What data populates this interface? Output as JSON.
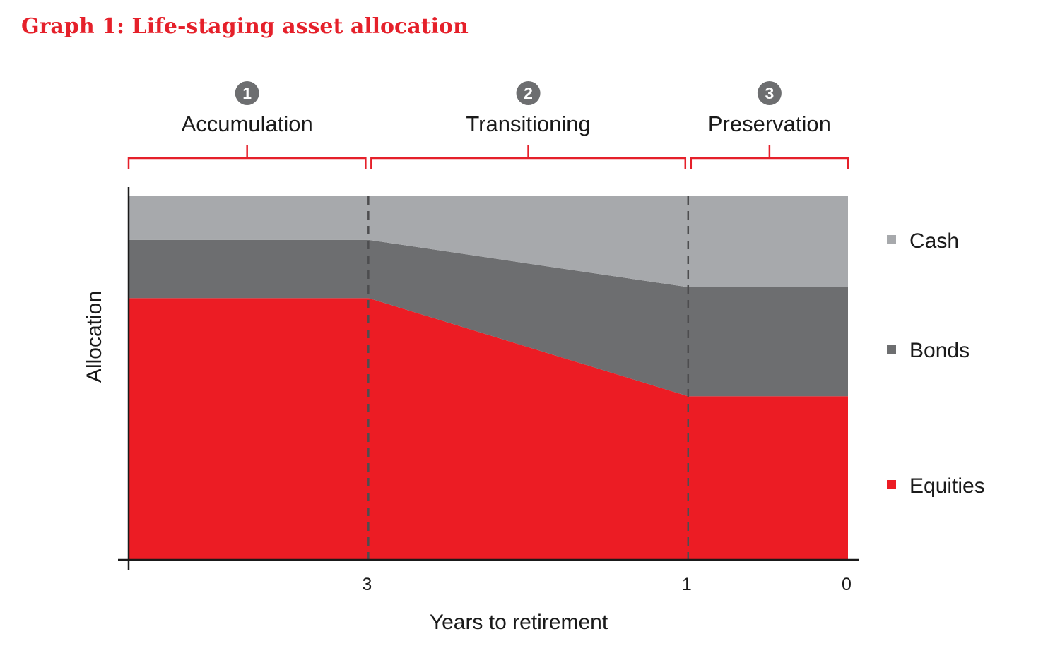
{
  "title": "Graph 1: Life-staging asset allocation",
  "chart_data": {
    "type": "area",
    "stacked": true,
    "xlabel": "Years to retirement",
    "ylabel": "Allocation",
    "x_ticks": [
      "3",
      "1",
      "0"
    ],
    "x": [
      4.5,
      3,
      1,
      0
    ],
    "series": [
      {
        "name": "Equities",
        "color": "#ec1c24",
        "values": [
          72,
          72,
          45,
          45
        ]
      },
      {
        "name": "Bonds",
        "color": "#6d6e70",
        "values": [
          16,
          16,
          30,
          30
        ]
      },
      {
        "name": "Cash",
        "color": "#a7a9ac",
        "values": [
          12,
          12,
          25,
          25
        ]
      }
    ],
    "legend_position": "right",
    "phases": [
      {
        "number": "1",
        "label": "Accumulation"
      },
      {
        "number": "2",
        "label": "Transitioning"
      },
      {
        "number": "3",
        "label": "Preservation"
      }
    ],
    "phase_boundaries": [
      3,
      1
    ],
    "bracket_color": "#e5202a",
    "badge_color": "#6d6e70"
  }
}
